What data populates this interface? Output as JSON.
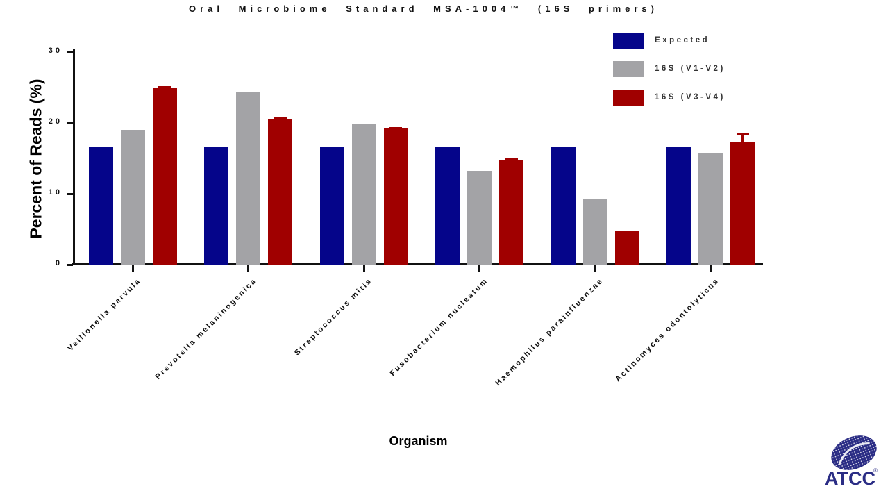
{
  "chart_data": {
    "type": "bar",
    "title": "Oral Microbiome Standard MSA-1004™  (16S primers)",
    "xlabel": "Organism",
    "ylabel": "Percent of Reads (%)",
    "ylim": [
      0,
      30
    ],
    "yticks": [
      0,
      10,
      20,
      30
    ],
    "grid": false,
    "legend_position": "top-right",
    "categories": [
      "Veillonella parvula",
      "Prevotella melaninogenica",
      "Streptococcus mitis",
      "Fusobacterium nucleatum",
      "Haemophilus parainfluenzae",
      "Actinomyces odontolyticus"
    ],
    "series": [
      {
        "name": "Expected",
        "color": "#05058a",
        "values": [
          16.7,
          16.7,
          16.7,
          16.7,
          16.7,
          16.7
        ],
        "errors": [
          0,
          0,
          0,
          0,
          0,
          0
        ]
      },
      {
        "name": "16S (V1-V2)",
        "color": "#a3a3a6",
        "values": [
          19.0,
          24.4,
          19.9,
          13.2,
          9.2,
          15.7
        ],
        "errors": [
          0,
          0,
          0,
          0,
          0,
          0
        ]
      },
      {
        "name": "16S (V3-V4)",
        "color": "#a00000",
        "values": [
          25.0,
          20.6,
          19.2,
          14.8,
          4.7,
          17.4
        ],
        "errors": [
          0.2,
          0.25,
          0.2,
          0.2,
          0,
          1.1
        ]
      }
    ]
  },
  "logo": {
    "text": "ATCC",
    "registered": "®",
    "color": "#2b2d85"
  }
}
